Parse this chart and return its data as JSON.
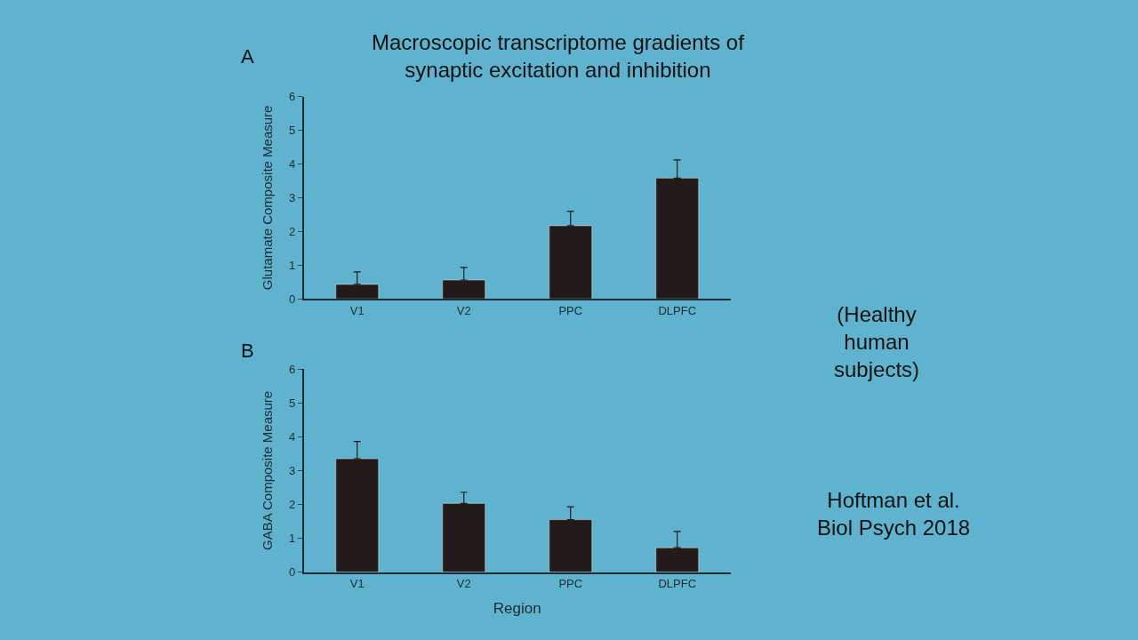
{
  "chart_data": [
    {
      "type": "bar",
      "title": "Macroscopic transcriptome gradients of synaptic excitation and inhibition",
      "ylabel": "Glutamate Composite Measure",
      "categories": [
        "V1",
        "V2",
        "PPC",
        "DLPFC"
      ],
      "values": [
        0.43,
        0.56,
        2.17,
        3.58
      ],
      "color": "#231a1a",
      "errors": [
        [
          0.43,
          0.8
        ],
        [
          0.56,
          0.93
        ],
        [
          2.17,
          2.6
        ],
        [
          3.58,
          4.12
        ]
      ],
      "ylim": [
        0,
        6
      ],
      "yticks": [
        0,
        1,
        2,
        3,
        4,
        5,
        6
      ],
      "grid": false,
      "annotations": [
        "A",
        "(Healthy human subjects)"
      ]
    },
    {
      "type": "bar",
      "ylabel": "GABA Composite Measure",
      "xlabel": "Region",
      "categories": [
        "V1",
        "V2",
        "PPC",
        "DLPFC"
      ],
      "values": [
        3.35,
        2.03,
        1.55,
        0.72
      ],
      "color": "#231a1a",
      "errors": [
        [
          3.35,
          3.86
        ],
        [
          2.03,
          2.36
        ],
        [
          1.55,
          1.93
        ],
        [
          0.72,
          1.2
        ]
      ],
      "ylim": [
        0,
        6
      ],
      "yticks": [
        0,
        1,
        2,
        3,
        4,
        5,
        6
      ],
      "grid": false,
      "annotations": [
        "B",
        "Hoftman et al. Biol Psych 2018"
      ]
    }
  ]
}
